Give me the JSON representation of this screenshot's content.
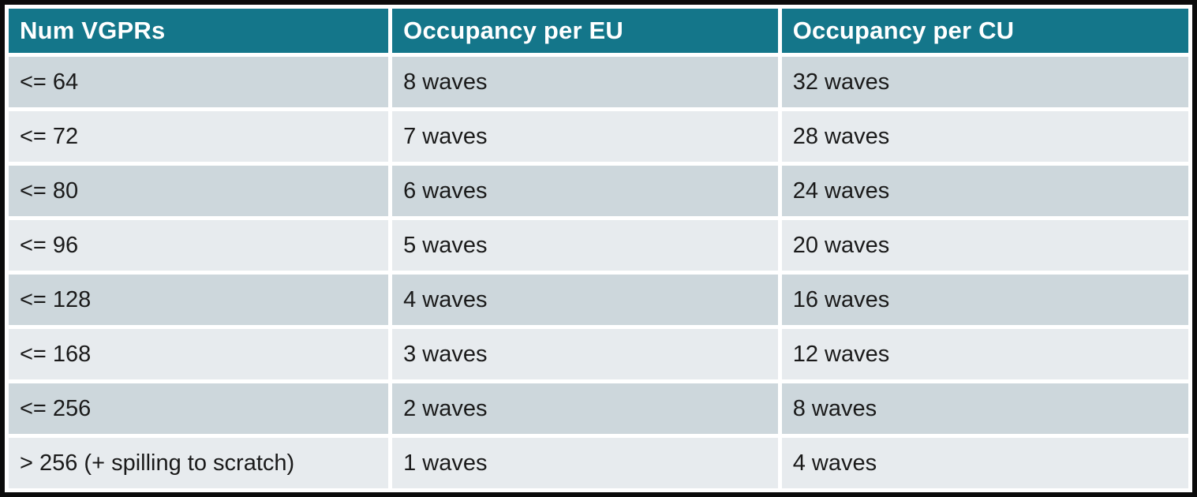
{
  "table": {
    "name": "vgpr-occupancy-table",
    "columns": [
      "Num VGPRs",
      "Occupancy per EU",
      "Occupancy per CU"
    ],
    "rows": [
      [
        "<= 64",
        "8 waves",
        "32 waves"
      ],
      [
        "<= 72",
        "7 waves",
        "28 waves"
      ],
      [
        "<= 80",
        "6 waves",
        "24 waves"
      ],
      [
        "<= 96",
        "5 waves",
        "20 waves"
      ],
      [
        "<= 128",
        "4 waves",
        "16 waves"
      ],
      [
        "<= 168",
        "3 waves",
        "12 waves"
      ],
      [
        "<= 256",
        "2 waves",
        "8 waves"
      ],
      [
        "> 256 (+ spilling to scratch)",
        "1 waves",
        "4 waves"
      ]
    ]
  },
  "colors": {
    "header_bg": "#14768A",
    "header_text": "#FFFFFF",
    "row_dark": "#CDD7DC",
    "row_light": "#E7EBEE",
    "frame_border": "#0B0B0B",
    "gridline": "#FFFFFF",
    "body_text": "#1A1A1A"
  }
}
